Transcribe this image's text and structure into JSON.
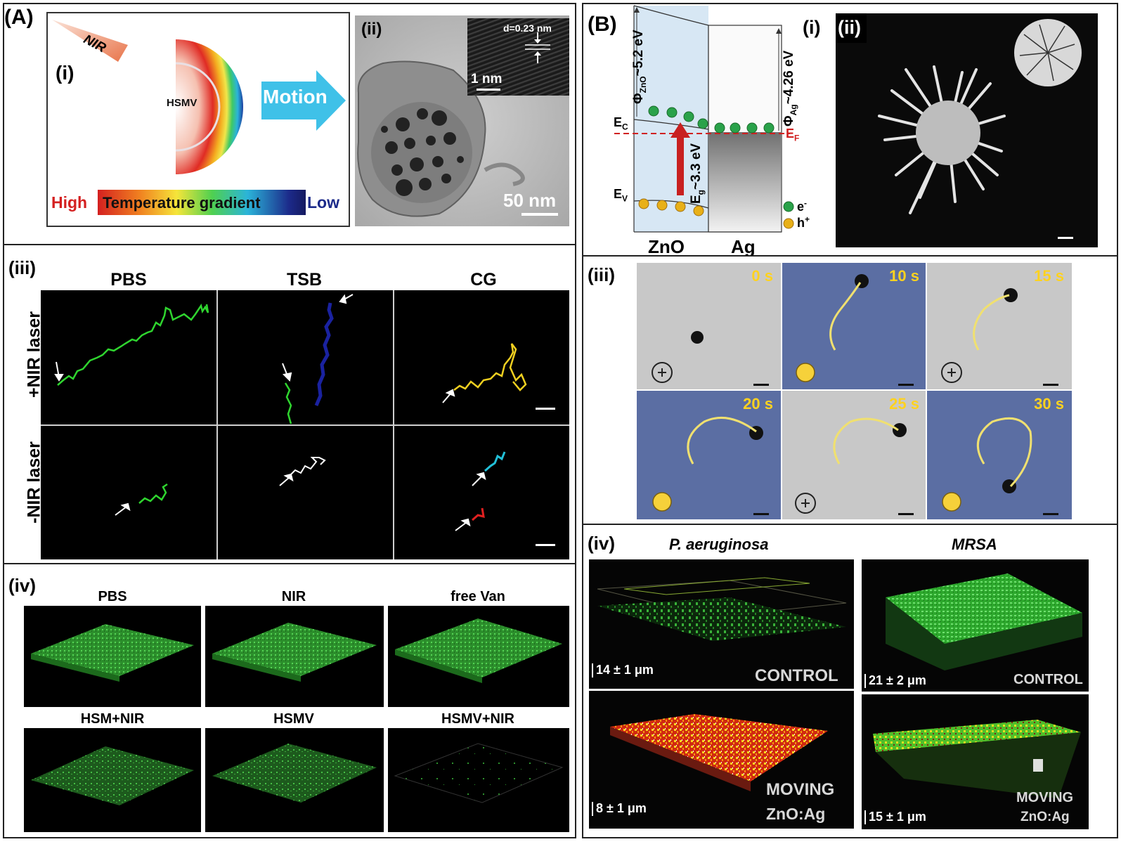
{
  "panel_A": {
    "label": "(A)",
    "i": {
      "label": "(i)",
      "nir": "NIR",
      "particle": "HSMV",
      "motion": "Motion",
      "gradient_high": "High",
      "gradient_text": "Temperature gradient",
      "gradient_low": "Low"
    },
    "ii": {
      "label": "(ii)",
      "d_spacing": "d=0.23 nm",
      "inset_scale": "1 nm",
      "scale": "50 nm"
    },
    "iii": {
      "label": "(iii)",
      "columns": [
        "PBS",
        "TSB",
        "CG"
      ],
      "rows": [
        "+NIR laser",
        "-NIR laser"
      ]
    },
    "iv": {
      "label": "(iv)",
      "top": [
        "PBS",
        "NIR",
        "free Van"
      ],
      "bottom": [
        "HSM+NIR",
        "HSMV",
        "HSMV+NIR"
      ]
    }
  },
  "panel_B": {
    "label": "(B)",
    "i": {
      "label": "(i)",
      "phi_zno": "Φ",
      "phi_zno_sub": "ZnO",
      "phi_zno_val": "~5.2 eV",
      "phi_ag": "Φ",
      "phi_ag_sub": "Ag",
      "phi_ag_val": "~4.26 eV",
      "ec": "E",
      "ec_sub": "C",
      "ev": "E",
      "ev_sub": "V",
      "ef": "E",
      "ef_sub": "F",
      "eg": "E",
      "eg_sub": "g",
      "eg_val": "~3.3 eV",
      "electron": "e",
      "electron_sup": "-",
      "hole": "h",
      "hole_sup": "+",
      "zno": "ZnO",
      "ag": "Ag"
    },
    "ii": {
      "label": "(ii)"
    },
    "iii": {
      "label": "(iii)",
      "times": [
        "0 s",
        "10 s",
        "15 s",
        "20 s",
        "25 s",
        "30 s"
      ]
    },
    "iv": {
      "label": "(iv)",
      "species": [
        "P. aeruginosa",
        "MRSA"
      ],
      "measures": [
        "14 ± 1 μm",
        "21 ± 2 μm",
        "8 ± 1 μm",
        "15 ± 1 μm"
      ],
      "control": "CONTROL",
      "moving": "MOVING",
      "moving_sub": "ZnO:Ag"
    }
  },
  "colors": {
    "nir_orange": "#e8744a",
    "motion_cyan": "#3fc1e8",
    "track_green": "#2fd52f",
    "track_blue": "#1a22a0",
    "track_yellow": "#f0d020",
    "track_cyan": "#22c0d8",
    "track_red": "#e02020",
    "ef_red": "#d02020",
    "zno_fill": "#d7e7f4",
    "electron_green": "#2aa24a",
    "hole_gold": "#e8b018",
    "time_yellow": "#ffd21f",
    "biofilm_green": "#36c236"
  },
  "icons": [
    "lightbulb-on-icon",
    "lightbulb-off-icon",
    "arrow-icon"
  ]
}
